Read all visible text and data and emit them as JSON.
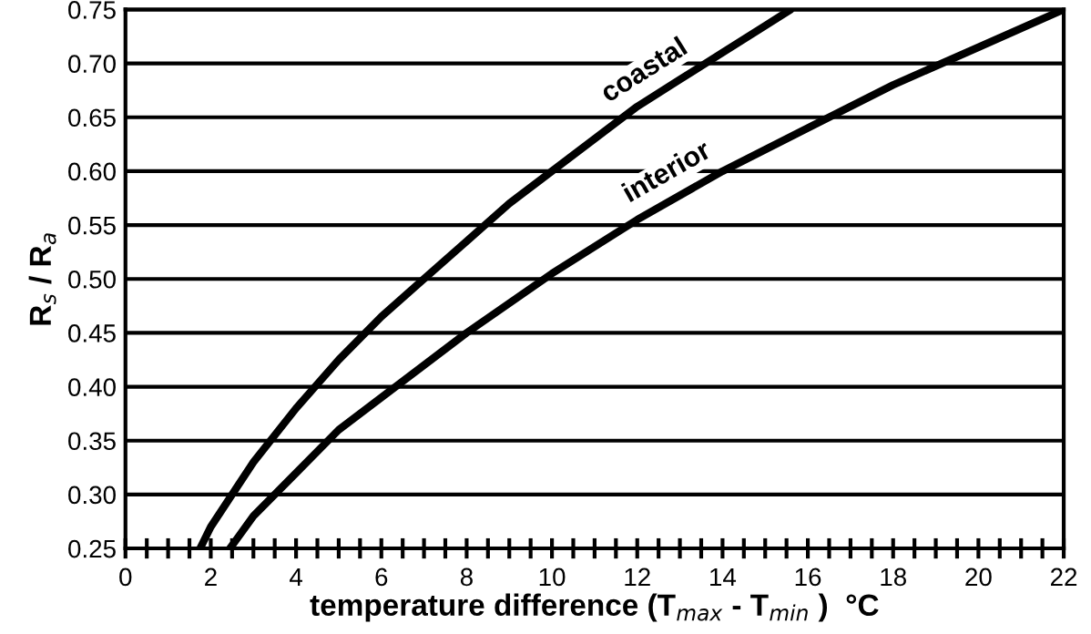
{
  "chart_data": {
    "type": "line",
    "xlabel": "temperature difference (T$_{max}$ - T$_{min}$ )  °C",
    "ylabel": "R$_{s}$ / R$_{a}$",
    "xlim": [
      0,
      22
    ],
    "ylim": [
      0.25,
      0.75
    ],
    "xticks": [
      0,
      {
        "value": 0.5,
        "label": null
      },
      {
        "value": 1,
        "label": null
      },
      {
        "value": 1.5,
        "label": null
      },
      2,
      {
        "value": 2.5,
        "label": null
      },
      {
        "value": 3,
        "label": null
      },
      {
        "value": 3.5,
        "label": null
      },
      4,
      {
        "value": 4.5,
        "label": null
      },
      {
        "value": 5,
        "label": null
      },
      {
        "value": 5.5,
        "label": null
      },
      6,
      {
        "value": 6.5,
        "label": null
      },
      {
        "value": 7,
        "label": null
      },
      {
        "value": 7.5,
        "label": null
      },
      8,
      {
        "value": 8.5,
        "label": null
      },
      {
        "value": 9,
        "label": null
      },
      {
        "value": 9.5,
        "label": null
      },
      10,
      {
        "value": 10.5,
        "label": null
      },
      {
        "value": 11,
        "label": null
      },
      {
        "value": 11.5,
        "label": null
      },
      12,
      {
        "value": 12.5,
        "label": null
      },
      {
        "value": 13,
        "label": null
      },
      {
        "value": 13.5,
        "label": null
      },
      14,
      {
        "value": 14.5,
        "label": null
      },
      {
        "value": 15,
        "label": null
      },
      {
        "value": 15.5,
        "label": null
      },
      16,
      {
        "value": 16.5,
        "label": null
      },
      {
        "value": 17,
        "label": null
      },
      {
        "value": 17.5,
        "label": null
      },
      18,
      {
        "value": 18.5,
        "label": null
      },
      {
        "value": 19,
        "label": null
      },
      {
        "value": 19.5,
        "label": null
      },
      20,
      {
        "value": 20.5,
        "label": null
      },
      {
        "value": 21,
        "label": null
      },
      {
        "value": 21.5,
        "label": null
      },
      22
    ],
    "yticks": [
      0.25,
      {
        "value": 0.3,
        "label": "0.30"
      },
      0.35,
      {
        "value": 0.4,
        "label": "0.40"
      },
      0.45,
      {
        "value": 0.5,
        "label": "0.50"
      },
      0.55,
      {
        "value": 0.6,
        "label": "0.60"
      },
      0.65,
      {
        "value": 0.7,
        "label": "0.70"
      },
      0.75
    ],
    "grid": "y",
    "line_style": "solid",
    "series": [
      {
        "name": "coastal",
        "color": "#000000",
        "x": [
          1.75,
          2,
          3,
          4,
          5,
          6,
          7,
          8,
          9,
          10,
          11,
          12,
          13,
          14,
          15,
          15.6
        ],
        "values": [
          0.25,
          0.27,
          0.33,
          0.38,
          0.425,
          0.465,
          0.5,
          0.535,
          0.57,
          0.6,
          0.63,
          0.66,
          0.685,
          0.71,
          0.735,
          0.75
        ]
      },
      {
        "name": "interior",
        "color": "#000000",
        "x": [
          2.45,
          3,
          4,
          5,
          6,
          8,
          10,
          12,
          14,
          16,
          18,
          20,
          22
        ],
        "values": [
          0.25,
          0.28,
          0.32,
          0.36,
          0.39,
          0.45,
          0.505,
          0.555,
          0.6,
          0.64,
          0.68,
          0.715,
          0.75
        ]
      }
    ]
  }
}
